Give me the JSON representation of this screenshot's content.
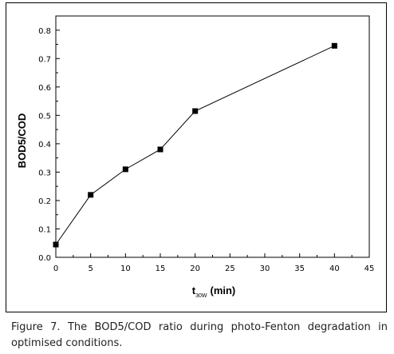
{
  "chart_data": {
    "type": "line",
    "x": [
      0,
      5,
      10,
      15,
      20,
      40
    ],
    "series": [
      {
        "values": [
          0.045,
          0.22,
          0.31,
          0.38,
          0.515,
          0.745
        ]
      }
    ],
    "xlim": [
      0,
      45
    ],
    "ylim": [
      0,
      0.85
    ],
    "xticks": [
      0,
      5,
      10,
      15,
      20,
      25,
      30,
      35,
      40,
      45
    ],
    "yticks": [
      "0.0",
      "0.1",
      "0.2",
      "0.3",
      "0.4",
      "0.5",
      "0.6",
      "0.7",
      "0.8"
    ],
    "ylabel": "BOD5/COD",
    "xlabel_main": "t",
    "xlabel_sub": "30W",
    "xlabel_unit": "(min)",
    "grid": false,
    "marker": "square"
  },
  "caption": "Figure 7. The BOD5/COD ratio during photo-Fenton degradation in optimised conditions."
}
